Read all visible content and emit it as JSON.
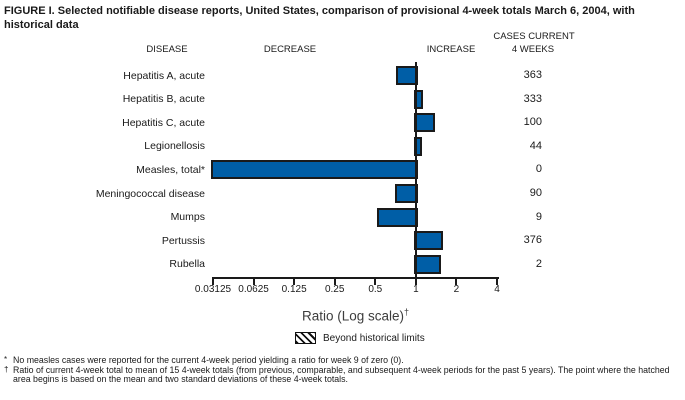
{
  "title": "FIGURE I. Selected notifiable disease reports, United States, comparison of provisional 4-week totals March 6, 2004, with historical data",
  "headers": {
    "disease": "DISEASE",
    "decrease": "DECREASE",
    "increase": "INCREASE",
    "cases_line1": "CASES CURRENT",
    "cases_line2": "4 WEEKS"
  },
  "chart_data": {
    "type": "bar",
    "orientation": "horizontal",
    "scale": "log2",
    "axis": {
      "label": "Ratio (Log scale)",
      "label_sup": "†",
      "min": 0.03125,
      "max": 4,
      "baseline": 1,
      "ticks": [
        0.03125,
        0.0625,
        0.125,
        0.25,
        0.5,
        1,
        2,
        4
      ],
      "tick_labels": [
        "0.03125",
        "0.0625",
        "0.125",
        "0.25",
        "0.5",
        "1",
        "2",
        "4"
      ]
    },
    "rows": [
      {
        "disease": "Hepatitis A, acute",
        "ratio": 0.74,
        "cases": "363",
        "beyond_limits": false
      },
      {
        "disease": "Hepatitis B, acute",
        "ratio": 1.1,
        "cases": "333",
        "beyond_limits": false
      },
      {
        "disease": "Hepatitis C, acute",
        "ratio": 1.33,
        "cases": "100",
        "beyond_limits": false
      },
      {
        "disease": "Legionellosis",
        "ratio": 1.07,
        "cases": "44",
        "beyond_limits": false
      },
      {
        "disease": "Measles, total*",
        "ratio": 0,
        "cases": "0",
        "beyond_limits": false
      },
      {
        "disease": "Meningococcal disease",
        "ratio": 0.72,
        "cases": "90",
        "beyond_limits": false
      },
      {
        "disease": "Mumps",
        "ratio": 0.53,
        "cases": "9",
        "beyond_limits": false
      },
      {
        "disease": "Pertussis",
        "ratio": 1.55,
        "cases": "376",
        "beyond_limits": false
      },
      {
        "disease": "Rubella",
        "ratio": 1.48,
        "cases": "2",
        "beyond_limits": false
      }
    ],
    "legend": {
      "swatch": "hatched",
      "label": "Beyond historical limits"
    },
    "colors": {
      "bar_fill": "#005EA6",
      "bar_border": "#1A1A1A"
    }
  },
  "footnotes": [
    {
      "marker": "*",
      "text": "No measles cases were reported for the current 4-week period yielding a ratio for week 9 of zero (0)."
    },
    {
      "marker": "†",
      "text": "Ratio of current 4-week total to mean of 15 4-week totals (from previous, comparable, and subsequent 4-week periods for the past 5 years). The point where the hatched area begins is based on the mean and two standard deviations of these 4-week totals."
    }
  ]
}
